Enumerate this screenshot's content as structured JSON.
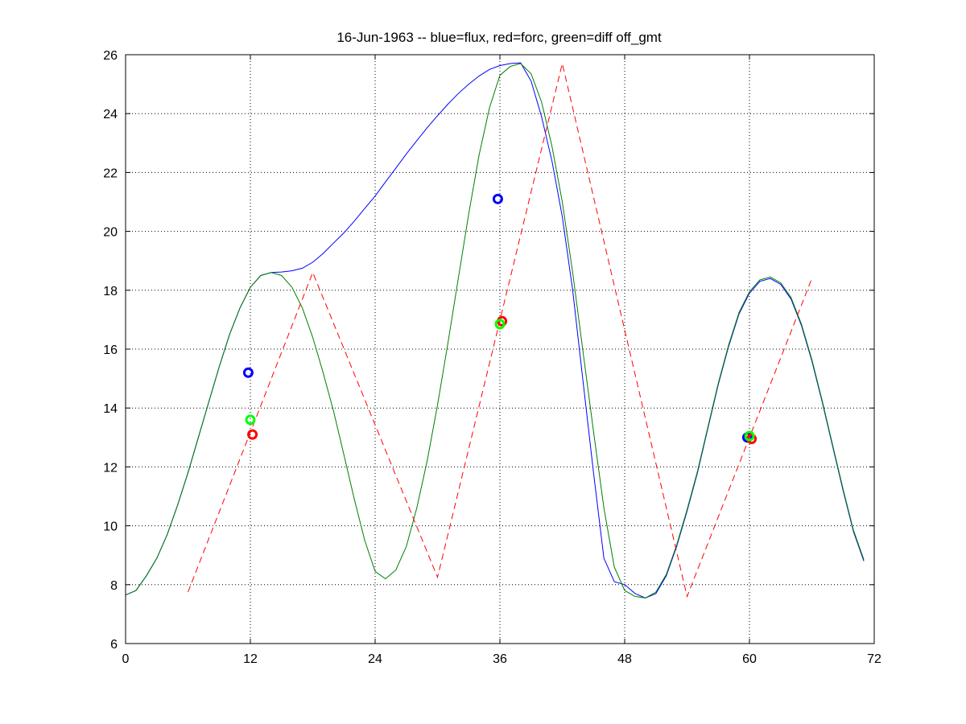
{
  "chart_data": {
    "type": "line",
    "title": "16-Jun-1963 -- blue=flux, red=forc, green=diff off_gmt",
    "xlabel": "",
    "ylabel": "",
    "xlim": [
      0,
      72
    ],
    "ylim": [
      6,
      26
    ],
    "xticks": [
      0,
      12,
      24,
      36,
      48,
      60,
      72
    ],
    "yticks": [
      6,
      8,
      10,
      12,
      14,
      16,
      18,
      20,
      22,
      24,
      26
    ],
    "grid": true,
    "colors": {
      "flux": "#0000ff",
      "forc": "#ff0000",
      "diff": "#007f00",
      "diff_marker": "#00ff00",
      "axes": "#000000",
      "grid": "#000000"
    },
    "series": [
      {
        "color_key": "flux",
        "style": "solid",
        "x": [
          0,
          1,
          2,
          3,
          4,
          5,
          6,
          7,
          8,
          9,
          10,
          11,
          12,
          13,
          14,
          15,
          16,
          17,
          18,
          19,
          20,
          21,
          22,
          23,
          24,
          25,
          26,
          27,
          28,
          29,
          30,
          31,
          32,
          33,
          34,
          35,
          36,
          37,
          38,
          39,
          40,
          41,
          42,
          43,
          44,
          45,
          46,
          47,
          48,
          49,
          50,
          51,
          52,
          53,
          54,
          55,
          56,
          57,
          58,
          59,
          60,
          61,
          62,
          63,
          64,
          65,
          66,
          67,
          68,
          69,
          70,
          71
        ],
        "y": [
          7.65,
          7.8,
          8.3,
          8.9,
          9.7,
          10.7,
          11.8,
          13.0,
          14.2,
          15.4,
          16.5,
          17.4,
          18.1,
          18.5,
          18.6,
          18.62,
          18.66,
          18.75,
          18.95,
          19.25,
          19.6,
          19.95,
          20.35,
          20.78,
          21.2,
          21.68,
          22.15,
          22.63,
          23.08,
          23.52,
          23.93,
          24.32,
          24.68,
          25.0,
          25.28,
          25.5,
          25.63,
          25.7,
          25.72,
          25.1,
          23.9,
          22.4,
          20.5,
          18.0,
          14.9,
          11.8,
          8.9,
          8.1,
          8.0,
          7.7,
          7.55,
          7.7,
          8.3,
          9.3,
          10.5,
          11.8,
          13.3,
          14.8,
          16.1,
          17.2,
          17.9,
          18.3,
          18.4,
          18.2,
          17.7,
          16.8,
          15.6,
          14.2,
          12.7,
          11.2,
          9.8,
          8.8
        ],
        "_note_end": ""
      },
      {
        "color_key": "diff",
        "style": "solid",
        "x": [
          0,
          1,
          2,
          3,
          4,
          5,
          6,
          7,
          8,
          9,
          10,
          11,
          12,
          13,
          14,
          15,
          16,
          17,
          18,
          19,
          20,
          21,
          22,
          23,
          24,
          25,
          26,
          27,
          28,
          29,
          30,
          31,
          32,
          33,
          34,
          35,
          36,
          37,
          38,
          39,
          40,
          41,
          42,
          43,
          44,
          45,
          46,
          47,
          48,
          49,
          50,
          51,
          52,
          53,
          54,
          55,
          56,
          57,
          58,
          59,
          60,
          61,
          62,
          63,
          64,
          65,
          66,
          67,
          68,
          69,
          70,
          71
        ],
        "y": [
          7.65,
          7.8,
          8.3,
          8.9,
          9.7,
          10.7,
          11.8,
          13.0,
          14.2,
          15.4,
          16.5,
          17.4,
          18.1,
          18.5,
          18.6,
          18.5,
          18.1,
          17.4,
          16.4,
          15.2,
          13.9,
          12.4,
          10.9,
          9.5,
          8.45,
          8.2,
          8.5,
          9.3,
          10.6,
          12.2,
          14.1,
          16.2,
          18.4,
          20.6,
          22.6,
          24.2,
          25.3,
          25.6,
          25.7,
          25.35,
          24.4,
          22.9,
          21.0,
          18.6,
          15.9,
          13.2,
          10.6,
          8.6,
          7.8,
          7.6,
          7.55,
          7.75,
          8.35,
          9.35,
          10.55,
          11.85,
          13.35,
          14.85,
          16.15,
          17.25,
          17.95,
          18.35,
          18.45,
          18.25,
          17.75,
          16.85,
          15.65,
          14.25,
          12.75,
          11.25,
          9.85,
          8.85
        ]
      },
      {
        "color_key": "forc",
        "style": "dashed",
        "x": [
          6,
          18,
          30,
          42,
          54,
          66
        ],
        "y": [
          7.75,
          18.6,
          8.25,
          25.7,
          7.6,
          18.4
        ]
      }
    ],
    "markers": [
      {
        "color_key": "flux",
        "x": 11.8,
        "y": 15.2
      },
      {
        "color_key": "forc",
        "x": 12.2,
        "y": 13.1
      },
      {
        "color_key": "diff_marker",
        "x": 12.0,
        "y": 13.6
      },
      {
        "color_key": "flux",
        "x": 35.8,
        "y": 21.1
      },
      {
        "color_key": "forc",
        "x": 36.2,
        "y": 16.95
      },
      {
        "color_key": "diff_marker",
        "x": 36.0,
        "y": 16.85
      },
      {
        "color_key": "flux",
        "x": 59.8,
        "y": 13.0
      },
      {
        "color_key": "forc",
        "x": 60.2,
        "y": 12.95
      },
      {
        "color_key": "diff_marker",
        "x": 60.0,
        "y": 13.05
      }
    ]
  }
}
